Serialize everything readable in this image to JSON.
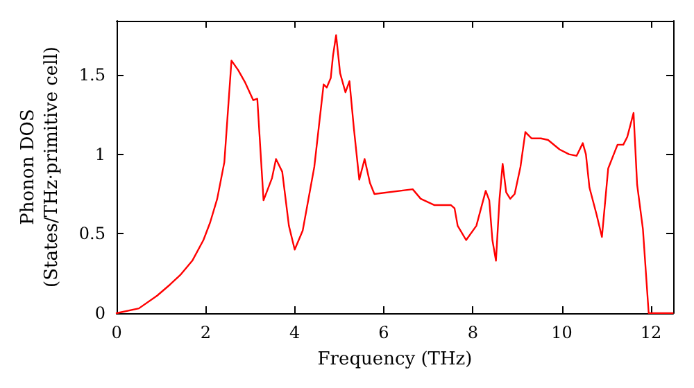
{
  "chart_data": {
    "type": "line",
    "xlabel": "Frequency (THz)",
    "ylabel": "Phonon DOS\n(States/THz·primitive cell)",
    "xlim": [
      0,
      12.5
    ],
    "xticks": [
      0,
      2,
      4,
      6,
      8,
      10,
      12
    ],
    "ylim": [
      0,
      1.84
    ],
    "yticks": [
      0,
      0.5,
      1,
      1.5
    ],
    "grid": false,
    "marker": "none",
    "line_style": "solid",
    "series": [
      {
        "color": "#ff0000",
        "x": [
          0,
          0.5,
          0.91,
          1.2,
          1.43,
          1.7,
          1.95,
          2.1,
          2.26,
          2.42,
          2.58,
          2.73,
          2.89,
          3.07,
          3.16,
          3.3,
          3.49,
          3.58,
          3.72,
          3.87,
          4.0,
          4.18,
          4.44,
          4.65,
          4.72,
          4.81,
          4.86,
          4.93,
          5.02,
          5.14,
          5.23,
          5.33,
          5.45,
          5.57,
          5.69,
          5.79,
          6.65,
          6.83,
          7.14,
          7.51,
          7.59,
          7.66,
          7.85,
          8.08,
          8.29,
          8.37,
          8.44,
          8.52,
          8.6,
          8.67,
          8.75,
          8.84,
          8.94,
          9.07,
          9.18,
          9.32,
          9.53,
          9.69,
          9.95,
          10.16,
          10.33,
          10.47,
          10.54,
          10.62,
          10.78,
          10.9,
          11.04,
          11.25,
          11.38,
          11.47,
          11.61,
          11.69,
          11.82,
          11.95,
          12.49
        ],
        "values": [
          0,
          0.03,
          0.11,
          0.18,
          0.24,
          0.33,
          0.46,
          0.57,
          0.72,
          0.95,
          1.59,
          1.53,
          1.45,
          1.34,
          1.35,
          0.71,
          0.85,
          0.97,
          0.89,
          0.55,
          0.4,
          0.52,
          0.92,
          1.44,
          1.42,
          1.48,
          1.62,
          1.75,
          1.51,
          1.39,
          1.46,
          1.16,
          0.84,
          0.97,
          0.82,
          0.75,
          0.78,
          0.72,
          0.68,
          0.68,
          0.66,
          0.55,
          0.46,
          0.55,
          0.77,
          0.71,
          0.46,
          0.33,
          0.72,
          0.94,
          0.76,
          0.72,
          0.75,
          0.92,
          1.14,
          1.1,
          1.1,
          1.09,
          1.03,
          1.0,
          0.99,
          1.07,
          1.0,
          0.79,
          0.62,
          0.48,
          0.91,
          1.06,
          1.06,
          1.11,
          1.26,
          0.81,
          0.53,
          0,
          0
        ]
      }
    ]
  }
}
